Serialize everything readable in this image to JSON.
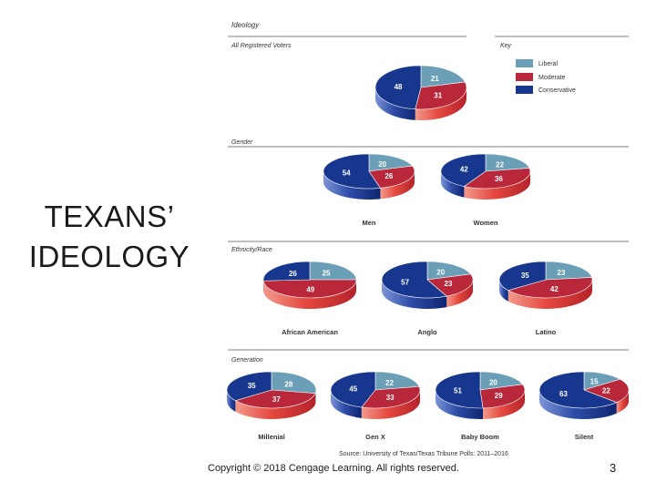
{
  "slide": {
    "title": "TEXANS’\nIDEOLOGY",
    "copyright": "Copyright © 2018 Cengage Learning.  All rights reserved.",
    "slide_number": "3"
  },
  "figure": {
    "heading": "Ideology",
    "key_label": "Key",
    "source": "Source: University of Texas/Texas Tribune Polls: 2011–2016",
    "sections": [
      "All Registered Voters",
      "Gender",
      "Ethnicity/Race",
      "Generation"
    ]
  },
  "colors": {
    "Liberal": "#6b9fb8",
    "Moderate": "#b8283a",
    "Conservative": "#17378e"
  },
  "chart_data": {
    "type": "pie",
    "legend": [
      "Liberal",
      "Moderate",
      "Conservative"
    ],
    "legend_placement": "top-right",
    "charts": [
      {
        "section": "All Registered Voters",
        "label": "",
        "values": {
          "Liberal": 21,
          "Moderate": 31,
          "Conservative": 48
        }
      },
      {
        "section": "Gender",
        "label": "Men",
        "values": {
          "Liberal": 20,
          "Moderate": 26,
          "Conservative": 54
        }
      },
      {
        "section": "Gender",
        "label": "Women",
        "values": {
          "Liberal": 22,
          "Moderate": 36,
          "Conservative": 42
        }
      },
      {
        "section": "Ethnicity/Race",
        "label": "African American",
        "values": {
          "Liberal": 25,
          "Moderate": 49,
          "Conservative": 26
        }
      },
      {
        "section": "Ethnicity/Race",
        "label": "Anglo",
        "values": {
          "Liberal": 20,
          "Moderate": 23,
          "Conservative": 57
        }
      },
      {
        "section": "Ethnicity/Race",
        "label": "Latino",
        "values": {
          "Liberal": 23,
          "Moderate": 42,
          "Conservative": 35
        }
      },
      {
        "section": "Generation",
        "label": "Millenial",
        "values": {
          "Liberal": 28,
          "Moderate": 37,
          "Conservative": 35
        }
      },
      {
        "section": "Generation",
        "label": "Gen X",
        "values": {
          "Liberal": 22,
          "Moderate": 33,
          "Conservative": 45
        }
      },
      {
        "section": "Generation",
        "label": "Baby Boom",
        "values": {
          "Liberal": 20,
          "Moderate": 29,
          "Conservative": 51
        }
      },
      {
        "section": "Generation",
        "label": "Silent",
        "values": {
          "Liberal": 15,
          "Moderate": 22,
          "Conservative": 63
        }
      }
    ]
  }
}
